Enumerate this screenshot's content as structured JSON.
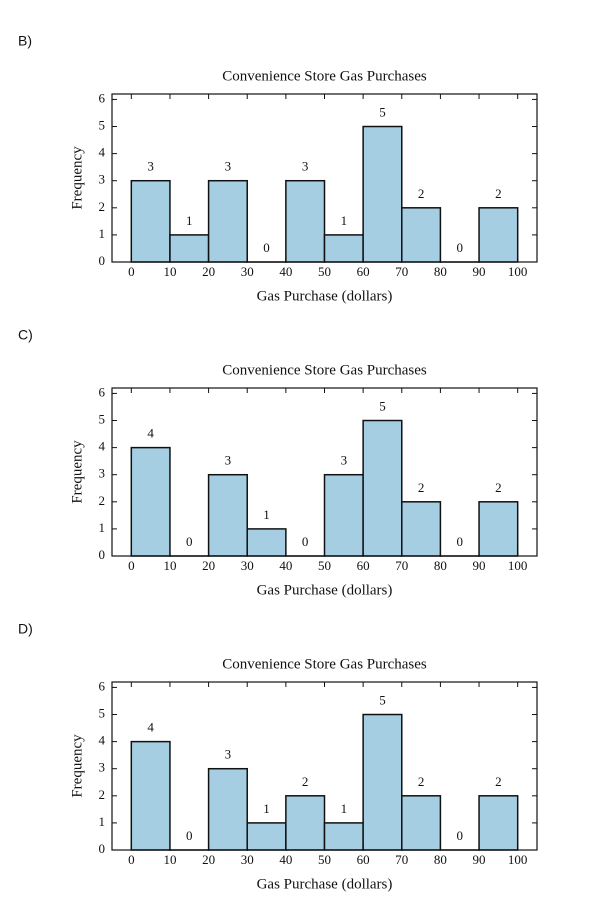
{
  "chart_data": [
    {
      "type": "histogram",
      "option": "B)",
      "title": "Convenience Store Gas Purchases",
      "xlabel": "Gas Purchase (dollars)",
      "ylabel": "Frequency",
      "bins": [
        0,
        10,
        20,
        30,
        40,
        50,
        60,
        70,
        80,
        90,
        100
      ],
      "counts": [
        3,
        1,
        3,
        0,
        3,
        1,
        5,
        2,
        0,
        2
      ],
      "color": "#a6cee3",
      "xlim": [
        -5,
        105
      ],
      "ylim": [
        0,
        6.2
      ],
      "xticks": [
        0,
        10,
        20,
        30,
        40,
        50,
        60,
        70,
        80,
        90,
        100
      ],
      "yticks": [
        0,
        1,
        2,
        3,
        4,
        5,
        6
      ]
    },
    {
      "type": "histogram",
      "option": "C)",
      "title": "Convenience Store Gas Purchases",
      "xlabel": "Gas Purchase (dollars)",
      "ylabel": "Frequency",
      "bins": [
        0,
        10,
        20,
        30,
        40,
        50,
        60,
        70,
        80,
        90,
        100
      ],
      "counts": [
        4,
        0,
        3,
        1,
        0,
        3,
        5,
        2,
        0,
        2
      ],
      "color": "#a6cee3",
      "xlim": [
        -5,
        105
      ],
      "ylim": [
        0,
        6.2
      ],
      "xticks": [
        0,
        10,
        20,
        30,
        40,
        50,
        60,
        70,
        80,
        90,
        100
      ],
      "yticks": [
        0,
        1,
        2,
        3,
        4,
        5,
        6
      ]
    },
    {
      "type": "histogram",
      "option": "D)",
      "title": "Convenience Store Gas Purchases",
      "xlabel": "Gas Purchase (dollars)",
      "ylabel": "Frequency",
      "bins": [
        0,
        10,
        20,
        30,
        40,
        50,
        60,
        70,
        80,
        90,
        100
      ],
      "counts": [
        4,
        0,
        3,
        1,
        2,
        1,
        5,
        2,
        0,
        2
      ],
      "color": "#a6cee3",
      "xlim": [
        -5,
        105
      ],
      "ylim": [
        0,
        6.2
      ],
      "xticks": [
        0,
        10,
        20,
        30,
        40,
        50,
        60,
        70,
        80,
        90,
        100
      ],
      "yticks": [
        0,
        1,
        2,
        3,
        4,
        5,
        6
      ]
    }
  ]
}
